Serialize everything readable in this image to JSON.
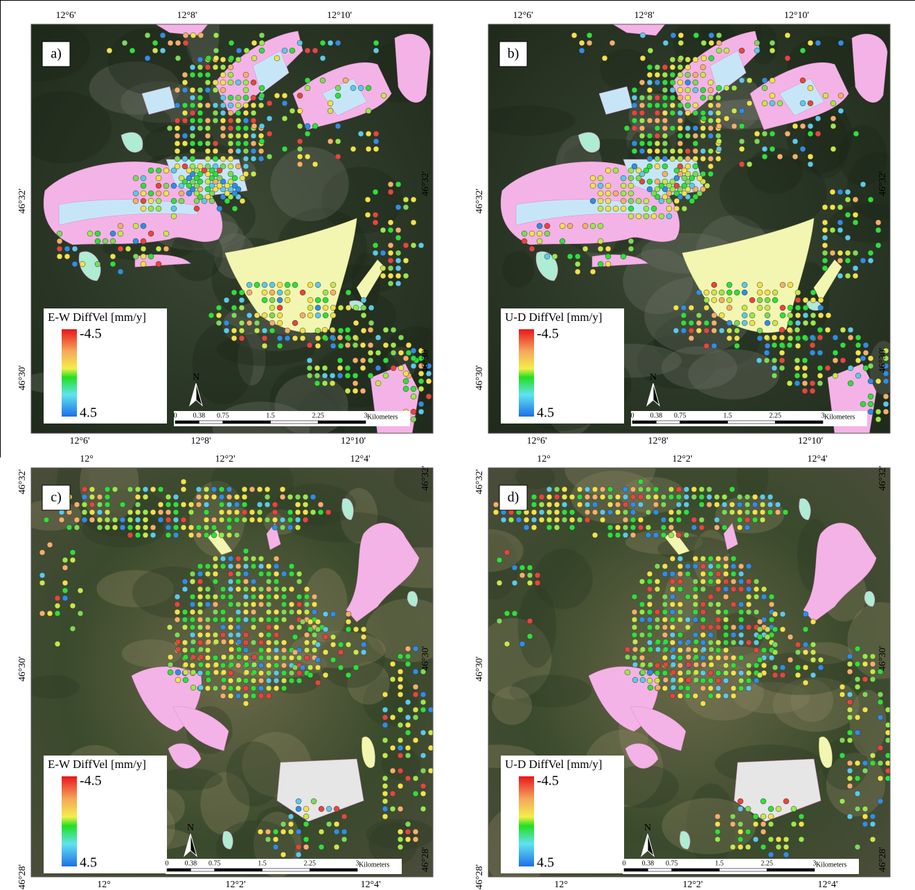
{
  "panels": [
    {
      "label": "a)",
      "legend_title": "E-W DiffVel [mm/y]",
      "legend_top": -4.5,
      "legend_bottom": 4.5,
      "top_labels": [
        "12°6'",
        "12°8'",
        "12°10'"
      ],
      "bottom_labels": [
        "12°6'",
        "12°8'",
        "12°10'"
      ],
      "left_labels": [
        "46°32'",
        "46°30'"
      ],
      "right_labels": [
        "46°32'",
        "46°30'"
      ]
    },
    {
      "label": "b)",
      "legend_title": "U-D DiffVel [mm/y]",
      "legend_top": -4.5,
      "legend_bottom": 4.5,
      "top_labels": [
        "12°6'",
        "12°8'",
        "12°10'"
      ],
      "bottom_labels": [
        "12°6'",
        "12°8'",
        "12°10'"
      ],
      "left_labels": [
        "46°32'",
        "46°30'"
      ],
      "right_labels": [
        "46°32'",
        "46°30'"
      ]
    },
    {
      "label": "c)",
      "legend_title": "E-W DiffVel [mm/y]",
      "legend_top": -4.5,
      "legend_bottom": 4.5,
      "top_labels": [
        "12°",
        "12°2'",
        "12°4'"
      ],
      "bottom_labels": [
        "12°",
        "12°2'",
        "12°4'"
      ],
      "left_labels": [
        "46°32'",
        "46°30'",
        "46°28'"
      ],
      "right_labels": [
        "46°32'",
        "46°30'",
        "46°28'"
      ]
    },
    {
      "label": "d)",
      "legend_title": "U-D DiffVel [mm/y]",
      "legend_top": -4.5,
      "legend_bottom": 4.5,
      "top_labels": [
        "12°",
        "12°2'",
        "12°4'"
      ],
      "bottom_labels": [
        "12°",
        "12°2'",
        "12°4'"
      ],
      "left_labels": [
        "46°32'",
        "46°30'",
        "46°28'"
      ],
      "right_labels": [
        "46°32'",
        "46°30'",
        "46°28'"
      ]
    }
  ],
  "scale_bar": {
    "ticks": [
      "0",
      "0.38",
      "0.75",
      "1.5",
      "2.25",
      "3"
    ],
    "unit": "Kilometers"
  },
  "north": "N"
}
